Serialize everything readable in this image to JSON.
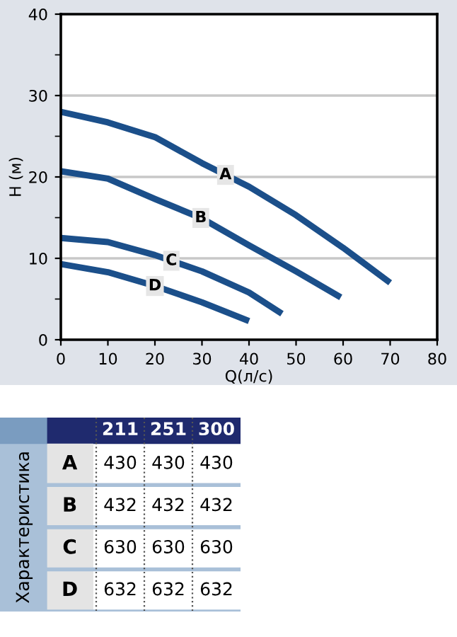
{
  "chart_data": [
    {
      "type": "line",
      "xlabel": "Q(л/с)",
      "ylabel": "H (м)",
      "xlim": [
        0,
        80
      ],
      "ylim": [
        0,
        40
      ],
      "xticks": [
        0,
        10,
        20,
        30,
        40,
        50,
        60,
        70,
        80
      ],
      "yticks": [
        0,
        {
          "value": 5,
          "label": null
        },
        10,
        {
          "value": 15,
          "label": null
        },
        20,
        {
          "value": 25,
          "label": null
        },
        30,
        {
          "value": 35,
          "label": null
        },
        40
      ],
      "grid": "y",
      "marker": "none",
      "line_style": "solid",
      "series": [
        {
          "name": "A",
          "color": "#1b4f8a",
          "x": [
            0,
            10,
            20,
            30,
            40,
            50,
            60,
            70
          ],
          "values": [
            28,
            26.7,
            24.9,
            21.7,
            18.8,
            15.3,
            11.3,
            7.0
          ]
        },
        {
          "name": "B",
          "color": "#1b4f8a",
          "x": [
            0,
            10,
            20,
            30,
            40,
            50,
            59.5
          ],
          "values": [
            20.7,
            19.8,
            17.3,
            14.9,
            11.6,
            8.4,
            5.2
          ]
        },
        {
          "name": "C",
          "color": "#1b4f8a",
          "x": [
            0,
            10,
            20,
            30,
            40,
            47
          ],
          "values": [
            12.5,
            12.0,
            10.4,
            8.4,
            5.8,
            3.2
          ]
        },
        {
          "name": "D",
          "color": "#1b4f8a",
          "x": [
            0,
            10,
            20,
            30,
            40
          ],
          "values": [
            9.3,
            8.3,
            6.6,
            4.6,
            2.3
          ]
        }
      ]
    },
    {
      "type": "heatmap",
      "data_labels": true,
      "ylabel": "Характеристика",
      "categories": [
        "211",
        "251",
        "300"
      ],
      "y_categories": [
        "A",
        "B",
        "C",
        "D"
      ],
      "cells": [
        [
          430,
          430,
          430
        ],
        [
          432,
          432,
          432
        ],
        [
          630,
          630,
          630
        ],
        [
          632,
          632,
          632
        ]
      ]
    }
  ]
}
